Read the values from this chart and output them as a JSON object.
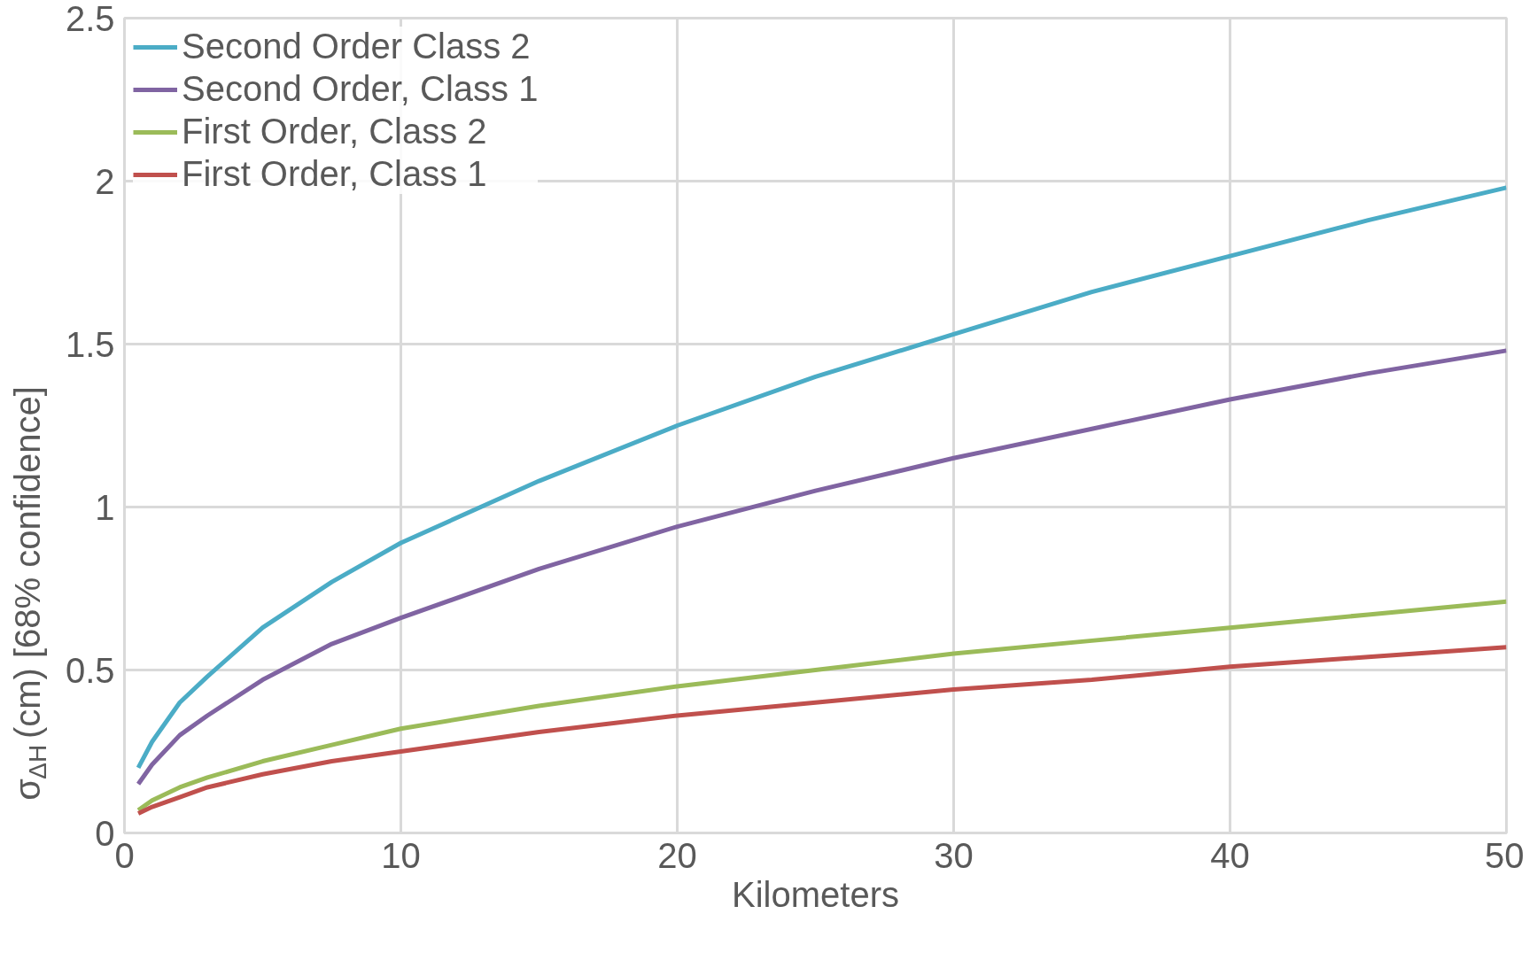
{
  "chart_data": {
    "type": "line",
    "xlabel": "Kilometers",
    "ylabel": "σ$_{ΔH}$ (cm) [68% confidence]",
    "x": [
      0.5,
      1,
      2,
      3,
      5,
      7.5,
      10,
      15,
      20,
      25,
      30,
      35,
      40,
      45,
      50
    ],
    "xlim": [
      0,
      50
    ],
    "xticks": [
      0,
      10,
      20,
      30,
      40,
      50
    ],
    "ylim": [
      0,
      2.5
    ],
    "yticks": [
      0,
      0.5,
      1,
      1.5,
      2,
      2.5
    ],
    "grid": true,
    "legend": "top left",
    "marker": "none",
    "line_style": "solid",
    "series": [
      {
        "name": "Second Order Class 2",
        "color": "#4bacc6",
        "values": [
          0.2,
          0.28,
          0.4,
          0.48,
          0.63,
          0.77,
          0.89,
          1.08,
          1.25,
          1.4,
          1.53,
          1.66,
          1.77,
          1.88,
          1.98
        ]
      },
      {
        "name": "Second Order, Class 1",
        "color": "#8064a2",
        "values": [
          0.15,
          0.21,
          0.3,
          0.36,
          0.47,
          0.58,
          0.66,
          0.81,
          0.94,
          1.05,
          1.15,
          1.24,
          1.33,
          1.41,
          1.48
        ]
      },
      {
        "name": "First Order, Class 2",
        "color": "#9bbb59",
        "values": [
          0.07,
          0.1,
          0.14,
          0.17,
          0.22,
          0.27,
          0.32,
          0.39,
          0.45,
          0.5,
          0.55,
          0.59,
          0.63,
          0.67,
          0.71
        ]
      },
      {
        "name": "First Order, Class 1",
        "color": "#c0504d",
        "values": [
          0.06,
          0.08,
          0.11,
          0.14,
          0.18,
          0.22,
          0.25,
          0.31,
          0.36,
          0.4,
          0.44,
          0.47,
          0.51,
          0.54,
          0.57
        ]
      }
    ]
  }
}
